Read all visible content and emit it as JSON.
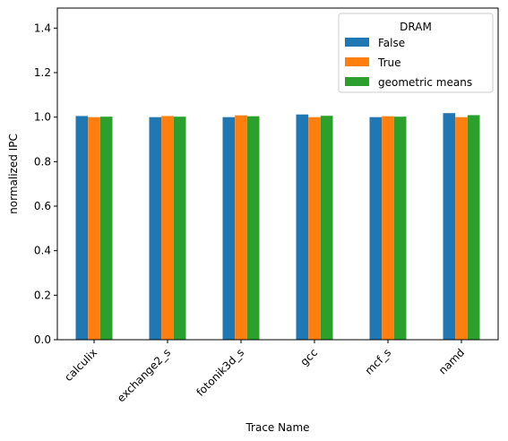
{
  "chart_data": {
    "type": "bar",
    "title": "",
    "xlabel": "Trace Name",
    "ylabel": "normalized IPC",
    "ylim": [
      0,
      1.49
    ],
    "yticks": [
      0.0,
      0.2,
      0.4,
      0.6,
      0.8,
      1.0,
      1.2,
      1.4
    ],
    "ytick_labels": [
      "0.0",
      "0.2",
      "0.4",
      "0.6",
      "0.8",
      "1.0",
      "1.2",
      "1.4"
    ],
    "categories": [
      "calculix",
      "exchange2_s",
      "fotonik3d_s",
      "gcc",
      "mcf_s",
      "namd"
    ],
    "legend": {
      "title": "DRAM",
      "placement": "top-right"
    },
    "grid": false,
    "series": [
      {
        "name": "False",
        "color": "#1f77b4",
        "values": [
          1.005,
          1.0,
          1.0,
          1.012,
          1.0,
          1.018
        ]
      },
      {
        "name": "True",
        "color": "#ff7f0e",
        "values": [
          1.0,
          1.005,
          1.008,
          1.0,
          1.004,
          1.0
        ]
      },
      {
        "name": "geometric means",
        "color": "#2ca02c",
        "values": [
          1.002,
          1.002,
          1.004,
          1.006,
          1.002,
          1.009
        ]
      }
    ]
  }
}
